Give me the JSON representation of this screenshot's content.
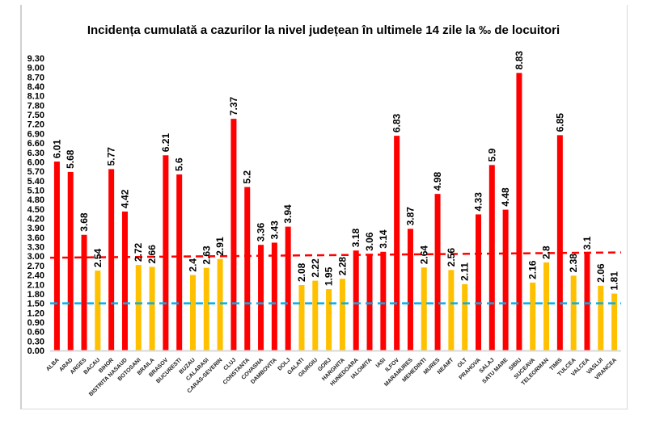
{
  "chart_data": {
    "type": "bar",
    "title": "Incidența cumulată a cazurilor la nivel județean în ultimele 14 zile la ‰ de locuitori",
    "xlabel": "",
    "ylabel": "",
    "ylim": [
      0,
      9.3
    ],
    "ytick_step": 0.3,
    "grid": false,
    "categories": [
      "ALBA",
      "ARAD",
      "ARGES",
      "BACAU",
      "BIHOR",
      "BISTRITA NASAUD",
      "BOTOSANI",
      "BRAILA",
      "BRASOV",
      "BUCURESTI",
      "BUZAU",
      "CALARASI",
      "CARAS-SEVERIN",
      "CLUJ",
      "CONSTANTA",
      "COVASNA",
      "DAMBOVITA",
      "DOLJ",
      "GALATI",
      "GIURGIU",
      "GORJ",
      "HARGHITA",
      "HUNEDOARA",
      "IALOMITA",
      "IASI",
      "ILFOV",
      "MARAMURES",
      "MEHEDINTI",
      "MURES",
      "NEAMT",
      "OLT",
      "PRAHOVA",
      "SALAJ",
      "SATU MARE",
      "SIBIU",
      "SUCEAVA",
      "TELEORMAN",
      "TIMIS",
      "TULCEA",
      "VALCEA",
      "VASLUI",
      "VRANCEA"
    ],
    "values": [
      6.01,
      5.68,
      3.68,
      2.54,
      5.77,
      4.42,
      2.72,
      2.66,
      6.21,
      5.6,
      2.4,
      2.63,
      2.91,
      7.37,
      5.2,
      3.36,
      3.43,
      3.94,
      2.08,
      2.22,
      1.95,
      2.28,
      3.18,
      3.06,
      3.14,
      6.83,
      3.87,
      2.64,
      4.98,
      2.56,
      2.11,
      4.33,
      5.9,
      4.48,
      8.83,
      2.16,
      2.8,
      6.85,
      2.38,
      3.1,
      2.06,
      1.81
    ],
    "data_labels": [
      "6.01",
      "5.68",
      "3.68",
      "2.54",
      "5.77",
      "4.42",
      "2.72",
      "2.66",
      "6.21",
      "5.6",
      "2.4",
      "2.63",
      "2.91",
      "7.37",
      "5.2",
      "3.36",
      "3.43",
      "3.94",
      "2.08",
      "2.22",
      "1.95",
      "2.28",
      "3.18",
      "3.06",
      "3.14",
      "6.83",
      "3.87",
      "2.64",
      "4.98",
      "2.56",
      "2.11",
      "4.33",
      "5.9",
      "4.48",
      "8.83",
      "2.16",
      "2.8",
      "6.85",
      "2.38",
      "3.1",
      "2.06",
      "1.81"
    ],
    "colors": {
      "above_3": "#ff0000",
      "below_3": "#ffc000",
      "red_line": "#ff0000",
      "blue_line": "#00b0f0"
    },
    "reference_lines": [
      {
        "style": "dashed",
        "color": "#ff0000",
        "y_start": 2.95,
        "y_end": 3.12
      },
      {
        "style": "dashed",
        "color": "#00b0f0",
        "y_start": 1.5,
        "y_end": 1.5
      }
    ]
  }
}
